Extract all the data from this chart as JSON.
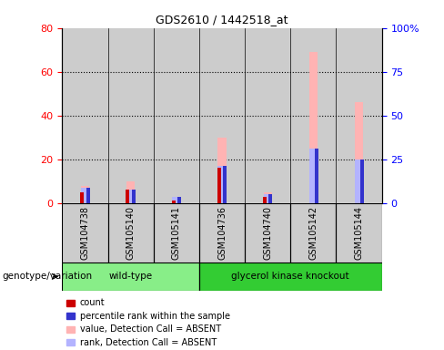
{
  "title": "GDS2610 / 1442518_at",
  "samples": [
    "GSM104738",
    "GSM105140",
    "GSM105141",
    "GSM104736",
    "GSM104740",
    "GSM105142",
    "GSM105144"
  ],
  "wt_indices": [
    0,
    1,
    2
  ],
  "ko_indices": [
    3,
    4,
    5,
    6
  ],
  "count_values": [
    5,
    6,
    1,
    16,
    3,
    0,
    0
  ],
  "percentile_rank_values": [
    7,
    6,
    3,
    17,
    4,
    25,
    20
  ],
  "absent_value_values": [
    8,
    10,
    3,
    30,
    5,
    69,
    46
  ],
  "absent_rank_values": [
    7,
    6,
    3,
    17,
    4,
    25,
    20
  ],
  "ylim_left": [
    0,
    80
  ],
  "ylim_right": [
    0,
    100
  ],
  "yticks_left": [
    0,
    20,
    40,
    60,
    80
  ],
  "yticks_right": [
    0,
    25,
    50,
    75,
    100
  ],
  "yticklabels_right": [
    "0",
    "25",
    "50",
    "75",
    "100%"
  ],
  "colors": {
    "count": "#cc0000",
    "percentile_rank": "#3333cc",
    "absent_value": "#ffb3b3",
    "absent_rank": "#b3b3ff"
  },
  "group_colors": {
    "wild-type": "#88ee88",
    "glycerol kinase knockout": "#33cc33"
  },
  "col_bg": "#cccccc",
  "legend_items": [
    {
      "label": "count",
      "color": "#cc0000"
    },
    {
      "label": "percentile rank within the sample",
      "color": "#3333cc"
    },
    {
      "label": "value, Detection Call = ABSENT",
      "color": "#ffb3b3"
    },
    {
      "label": "rank, Detection Call = ABSENT",
      "color": "#b3b3ff"
    }
  ],
  "genotype_label": "genotype/variation"
}
